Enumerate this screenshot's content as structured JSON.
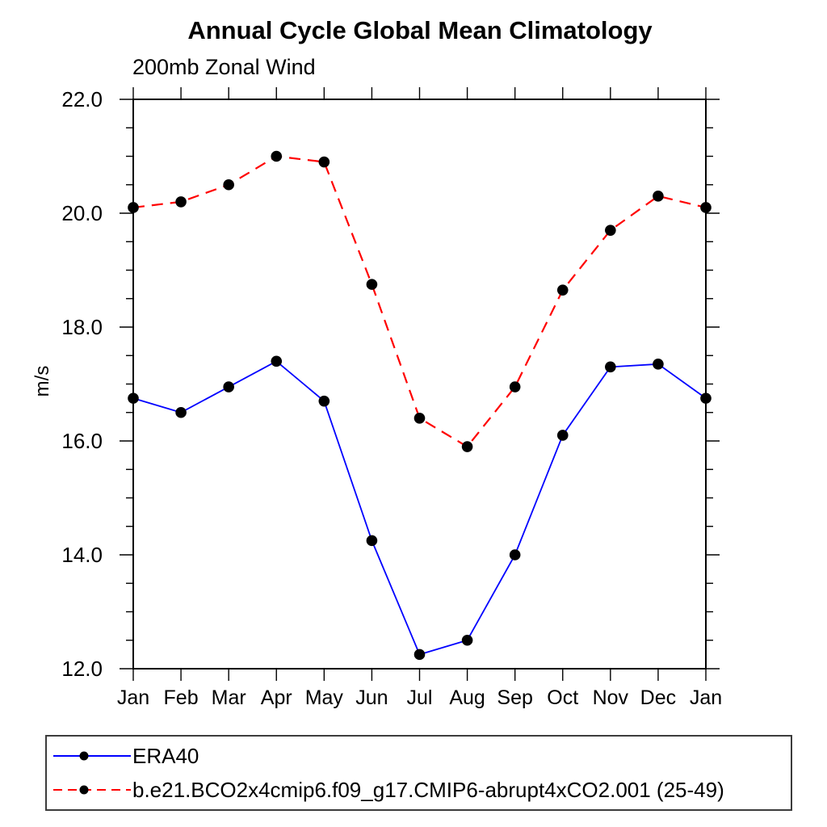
{
  "title": "Annual Cycle Global Mean Climatology",
  "subtitle": "200mb Zonal Wind",
  "y_axis_title": "m/s",
  "colors": {
    "era40_line": "#0000ff",
    "model_line": "#ff0000",
    "marker": "#000000",
    "frame": "#000000",
    "legend_border": "#3c3c3c"
  },
  "legend": {
    "entries": [
      {
        "label": "ERA40",
        "color": "#0000ff",
        "style": "solid",
        "marker": "circle"
      },
      {
        "label": "b.e21.BCO2x4cmip6.f09_g17.CMIP6-abrupt4xCO2.001 (25-49)",
        "color": "#ff0000",
        "style": "dashed",
        "marker": "circle"
      }
    ]
  },
  "chart_data": {
    "type": "line",
    "title": "Annual Cycle Global Mean Climatology",
    "subtitle": "200mb Zonal Wind",
    "ylabel": "m/s",
    "categories": [
      "Jan",
      "Feb",
      "Mar",
      "Apr",
      "May",
      "Jun",
      "Jul",
      "Aug",
      "Sep",
      "Oct",
      "Nov",
      "Dec",
      "Jan"
    ],
    "series": [
      {
        "name": "ERA40",
        "color": "#0000ff",
        "style": "solid",
        "marker": "circle",
        "values": [
          16.75,
          16.5,
          16.95,
          17.4,
          16.7,
          14.25,
          12.25,
          12.5,
          14.0,
          16.1,
          17.3,
          17.35,
          16.75
        ]
      },
      {
        "name": "b.e21.BCO2x4cmip6.f09_g17.CMIP6-abrupt4xCO2.001 (25-49)",
        "color": "#ff0000",
        "style": "dashed",
        "marker": "circle",
        "values": [
          20.1,
          20.2,
          20.5,
          21.0,
          20.9,
          18.75,
          16.4,
          15.9,
          16.95,
          18.65,
          19.7,
          20.3,
          20.1
        ]
      }
    ],
    "ylim": [
      12.0,
      22.0
    ],
    "y_major_ticks": [
      12.0,
      14.0,
      16.0,
      18.0,
      20.0,
      22.0
    ],
    "y_tick_labels": [
      "12.0",
      "14.0",
      "16.0",
      "18.0",
      "20.0",
      "22.0"
    ],
    "y_minor_interval": 0.5,
    "grid": false,
    "tick_direction": "out",
    "legend_position": "bottom-left"
  }
}
